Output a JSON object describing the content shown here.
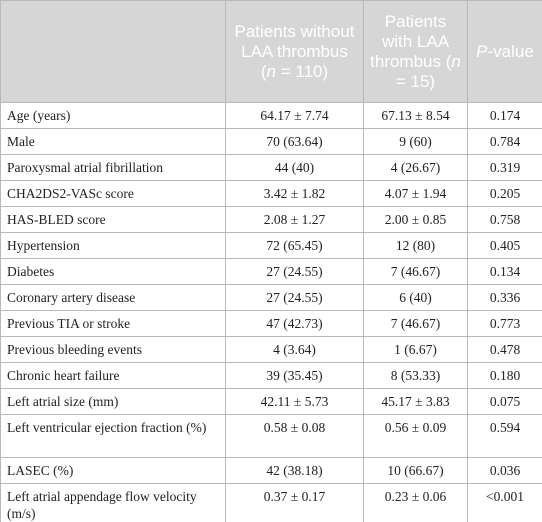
{
  "table": {
    "header": [
      [
        {
          "text": "Patients without LAA thrombus ("
        },
        {
          "text": "n",
          "italic": true
        },
        {
          "text": " = 110)"
        }
      ],
      [
        {
          "text": "Patients with LAA thrombus ("
        },
        {
          "text": "n",
          "italic": true
        },
        {
          "text": " = 15)"
        }
      ],
      [
        {
          "text": "P",
          "italic": true
        },
        {
          "text": "-value"
        }
      ]
    ],
    "rows": [
      [
        "Age (years)",
        "64.17 ± 7.74",
        "67.13 ± 8.54",
        "0.174"
      ],
      [
        "Male",
        "70 (63.64)",
        "9 (60)",
        "0.784"
      ],
      [
        "Paroxysmal atrial fibrillation",
        "44 (40)",
        "4 (26.67)",
        "0.319"
      ],
      [
        "CHA2DS2-VASc score",
        "3.42 ± 1.82",
        "4.07 ± 1.94",
        "0.205"
      ],
      [
        "HAS-BLED score",
        "2.08 ± 1.27",
        "2.00 ± 0.85",
        "0.758"
      ],
      [
        "Hypertension",
        "72 (65.45)",
        "12 (80)",
        "0.405"
      ],
      [
        "Diabetes",
        "27 (24.55)",
        "7 (46.67)",
        "0.134"
      ],
      [
        "Coronary artery disease",
        "27 (24.55)",
        "6 (40)",
        "0.336"
      ],
      [
        "Previous TIA or stroke",
        "47 (42.73)",
        "7 (46.67)",
        "0.773"
      ],
      [
        "Previous bleeding events",
        "4 (3.64)",
        "1 (6.67)",
        "0.478"
      ],
      [
        "Chronic heart failure",
        "39 (35.45)",
        "8 (53.33)",
        "0.180"
      ],
      [
        "Left atrial size (mm)",
        "42.11 ± 5.73",
        "45.17 ± 3.83",
        "0.075"
      ],
      [
        "Left ventricular ejection fraction (%)",
        "0.58 ± 0.08",
        "0.56 ± 0.09",
        "0.594"
      ],
      [
        "LASEC (%)",
        "42 (38.18)",
        "10 (66.67)",
        "0.036"
      ],
      [
        "Left atrial appendage flow velocity (m/s)",
        "0.37 ± 0.17",
        "0.23 ± 0.06",
        "<0.001"
      ]
    ]
  }
}
